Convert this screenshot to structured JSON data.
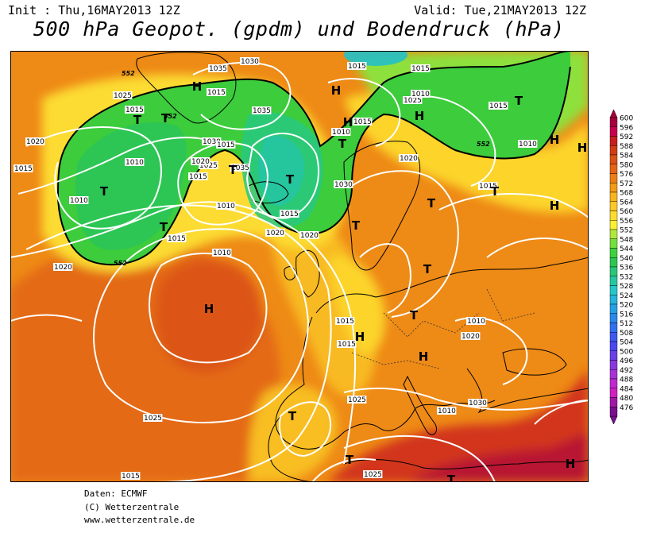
{
  "header": {
    "init": "Init : Thu,16MAY2013 12Z",
    "valid": "Valid: Tue,21MAY2013 12Z",
    "title": "500 hPa Geopot. (gpdm) und Bodendruck (hPa)"
  },
  "footer": {
    "line1": "Daten: ECMWF",
    "line2": "(C) Wetterzentrale",
    "line3": "www.wetterzentrale.de"
  },
  "legend": {
    "levels": [
      "600",
      "596",
      "592",
      "588",
      "584",
      "580",
      "576",
      "572",
      "568",
      "564",
      "560",
      "556",
      "552",
      "548",
      "544",
      "540",
      "536",
      "532",
      "528",
      "524",
      "520",
      "516",
      "512",
      "508",
      "504",
      "500",
      "496",
      "492",
      "488",
      "484",
      "480",
      "476"
    ],
    "colors": [
      "#a8003c",
      "#c8004e",
      "#c81e1e",
      "#d23a14",
      "#dc5014",
      "#e66414",
      "#ee7e14",
      "#f49a14",
      "#f8b41c",
      "#fcc826",
      "#fcdc2e",
      "#fcf030",
      "#b0e83c",
      "#74e03c",
      "#3cd23c",
      "#2ac850",
      "#28c878",
      "#24c8a0",
      "#24c8c8",
      "#24b4dc",
      "#24a0e6",
      "#2888ec",
      "#3070f0",
      "#3c5af0",
      "#4a46f0",
      "#6a40e8",
      "#8838e0",
      "#a830d8",
      "#c028d0",
      "#d020c0",
      "#a018a8",
      "#781090"
    ]
  },
  "map": {
    "pressure_systems": [
      {
        "label": "H"
      },
      {
        "label": "H"
      },
      {
        "label": "H"
      },
      {
        "label": "H"
      },
      {
        "label": "H"
      },
      {
        "label": "H"
      },
      {
        "label": "H"
      },
      {
        "label": "H"
      },
      {
        "label": "H"
      },
      {
        "label": "H"
      },
      {
        "label": "H"
      },
      {
        "label": "T"
      },
      {
        "label": "T"
      },
      {
        "label": "T"
      },
      {
        "label": "T"
      },
      {
        "label": "T"
      },
      {
        "label": "T"
      },
      {
        "label": "T"
      },
      {
        "label": "T"
      },
      {
        "label": "T"
      },
      {
        "label": "T"
      },
      {
        "label": "T"
      },
      {
        "label": "T"
      },
      {
        "label": "T"
      },
      {
        "label": "T"
      },
      {
        "label": "T"
      },
      {
        "label": "T"
      }
    ],
    "isobar_labels": [
      "1030",
      "1035",
      "1015",
      "1025",
      "1015",
      "1020",
      "1010",
      "1015",
      "1010",
      "1015",
      "1020",
      "1015",
      "1025",
      "1010",
      "1020",
      "1030",
      "1025",
      "1035",
      "1030",
      "1035",
      "1015",
      "1020",
      "1015",
      "1015",
      "1015",
      "1010",
      "1010",
      "1020",
      "1025",
      "1015",
      "1015",
      "1015",
      "1010",
      "1020",
      "1025",
      "1010",
      "1030",
      "1025",
      "1015",
      "1015",
      "1010",
      "1010",
      "1015",
      "1020"
    ],
    "geopotential_labels": [
      "552",
      "552",
      "552",
      "552"
    ]
  }
}
